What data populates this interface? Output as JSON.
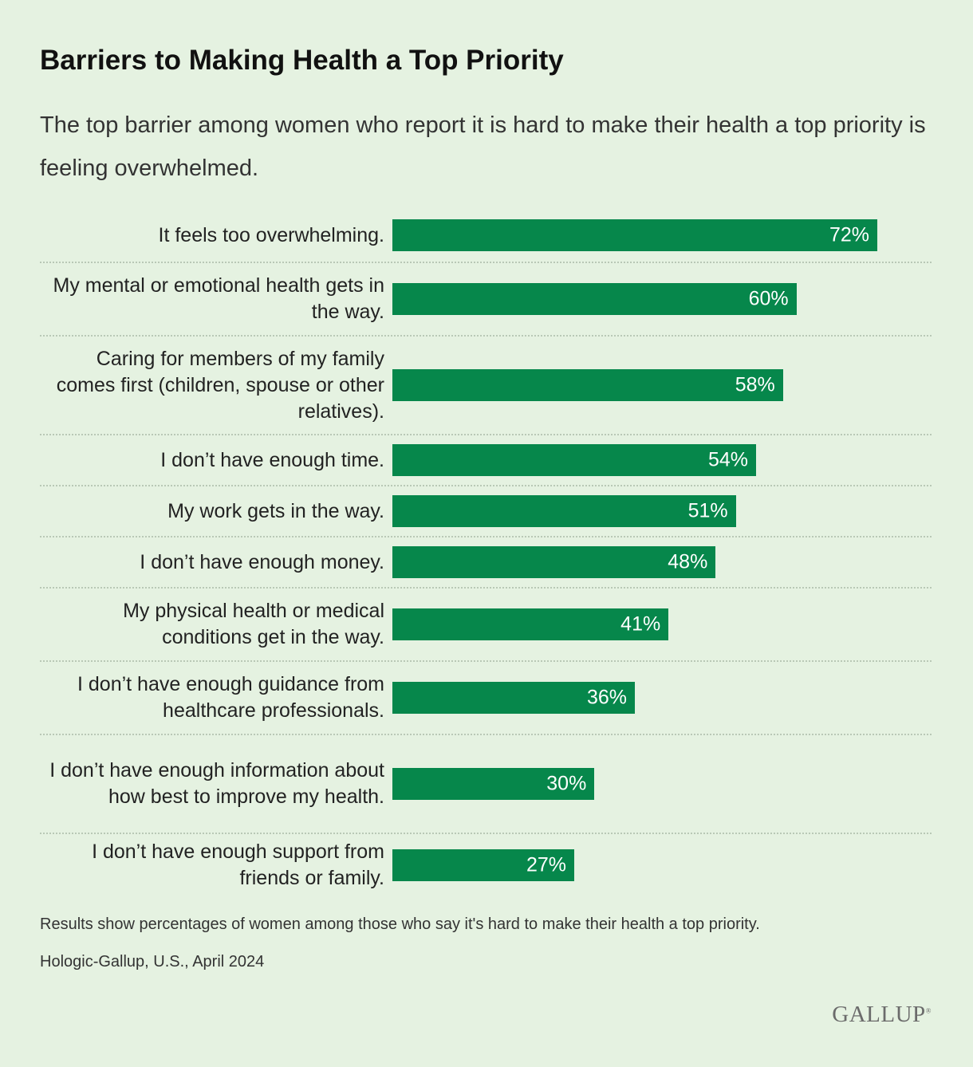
{
  "header": {
    "title": "Barriers to Making Health a Top Priority",
    "subtitle": "The top barrier among women who report it is hard to make their health a top priority is feeling overwhelmed."
  },
  "footer": {
    "note": "Results show percentages of women among those who say it's hard to make their health a top priority.",
    "source": "Hologic-Gallup, U.S., April 2024",
    "logo": "GALLUP",
    "logo_mark": "®"
  },
  "colors": {
    "background": "#e5f2e1",
    "bar": "#06874b",
    "bar_text": "#ffffff"
  },
  "chart_data": {
    "type": "bar",
    "orientation": "horizontal",
    "categories": [
      "It  feels too overwhelming.",
      "My mental or emotional health gets in the way.",
      "Caring for members of my family comes first (children, spouse or other relatives).",
      "I don’t have enough time.",
      "My work gets in the way.",
      "I don’t have enough money.",
      "My physical health or medical conditions get in the way.",
      "I don’t have enough guidance from healthcare professionals.",
      "I don’t have enough information about how best to improve my health.",
      "I don’t have enough support from friends or family."
    ],
    "values": [
      72,
      60,
      58,
      54,
      51,
      48,
      41,
      36,
      30,
      27
    ],
    "value_labels": [
      "72%",
      "60%",
      "58%",
      "54%",
      "51%",
      "48%",
      "41%",
      "36%",
      "30%",
      "27%"
    ],
    "xlim": [
      0,
      80
    ],
    "grid": false
  }
}
